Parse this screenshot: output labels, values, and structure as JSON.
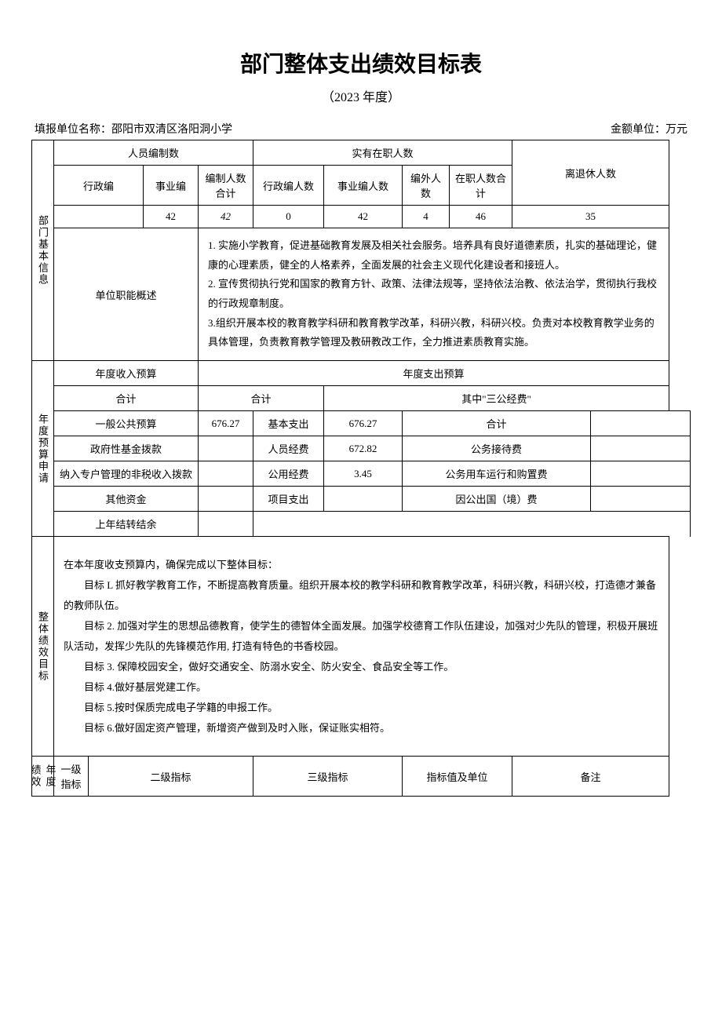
{
  "header": {
    "title": "部门整体支出绩效目标表",
    "subtitle": "（2023 年度）",
    "org_label": "填报单位名称：邵阳市双清区洛阳洞小学",
    "unit_label": "金额单位：万元"
  },
  "section1": {
    "label": "部门基本信息",
    "staff_headers": {
      "persons_budget": "人员编制数",
      "persons_actual": "实有在职人数",
      "retired": "离退休人数",
      "admin_budget": "行政编",
      "career_budget": "事业编",
      "budget_total": "编制人数合计",
      "admin_actual": "行政编人数",
      "career_actual": "事业编人数",
      "extra_actual": "编外人数",
      "actual_total": "在职人数合计"
    },
    "staff_values": {
      "admin_budget": "",
      "career_budget": "42",
      "budget_total": "42",
      "admin_actual": "0",
      "career_actual": "42",
      "extra_actual": "4",
      "actual_total": "46",
      "retired": "35"
    },
    "duty_label": "单位职能概述",
    "duty_text": "1. 实施小学教育，促进基础教育发展及相关社会服务。培养具有良好道德素质，扎实的基础理论，健康的心理素质，健全的人格素养，全面发展的社会主义现代化建设者和接班人。\n2. 宣传贯彻执行党和国家的教育方针、政策、法律法规等，坚持依法治教、依法治学，贯彻执行我校的行政规章制度。\n3.组织开展本校的教育教学科研和教育教学改革，科研兴教，科研兴校。负责对本校教育教学业务的具体管理，负责教育教学管理及教研教改工作，全力推进素质教育实施。"
  },
  "section2": {
    "label": "年度预算申请",
    "income_label": "年度收入预算",
    "expense_label": "年度支出预算",
    "total_label": "合计",
    "sangong_label": "其中\"三公经费\"",
    "rows": {
      "r1": {
        "income_item": "一般公共预算",
        "income_val": "676.27",
        "expense_item": "基本支出",
        "expense_val": "676.27",
        "sangong_item": "合计",
        "sangong_val": ""
      },
      "r2": {
        "income_item": "政府性基金拨款",
        "income_val": "",
        "expense_item": "人员经费",
        "expense_val": "672.82",
        "sangong_item": "公务接待费",
        "sangong_val": ""
      },
      "r3": {
        "income_item": "纳入专户管理的非税收入拨款",
        "income_val": "",
        "expense_item": "公用经费",
        "expense_val": "3.45",
        "sangong_item": "公务用车运行和购置费",
        "sangong_val": ""
      },
      "r4": {
        "income_item": "其他资金",
        "income_val": "",
        "expense_item": "项目支出",
        "expense_val": "",
        "sangong_item": "因公出国（境）费",
        "sangong_val": ""
      },
      "r5": {
        "income_item": "上年结转结余",
        "income_val": ""
      }
    }
  },
  "section3": {
    "label": "整体绩效目标",
    "intro": "在本年度收支预算内，确保完成以下整体目标：",
    "goals": [
      "目标 L 抓好教学教育工作，不断提高教育质量。组织开展本校的教学科研和教育教学改革，科研兴教，科研兴校，打造德才兼备的教师队伍。",
      "目标 2. 加强对学生的思想品德教育，使学生的德智体全面发展。加强学校德育工作队伍建设，加强对少先队的管理，积极开展班队活动，发挥少先队的先锋模范作用, 打造有特色的书香校园。",
      "目标 3. 保障校园安全，做好交通安全、防溺水安全、防火安全、食品安全等工作。",
      "目标 4.做好基层党建工作。",
      "目标 5.按时保质完成电子学籍的申报工作。",
      "目标 6.做好固定资产管理，新增资产做到及时入账，保证账实相符。"
    ]
  },
  "section4": {
    "label": "年度绩效",
    "cols": {
      "level1": "一级指标",
      "level2": "二级指标",
      "level3": "三级指标",
      "value": "指标值及单位",
      "remark": "备注"
    }
  }
}
